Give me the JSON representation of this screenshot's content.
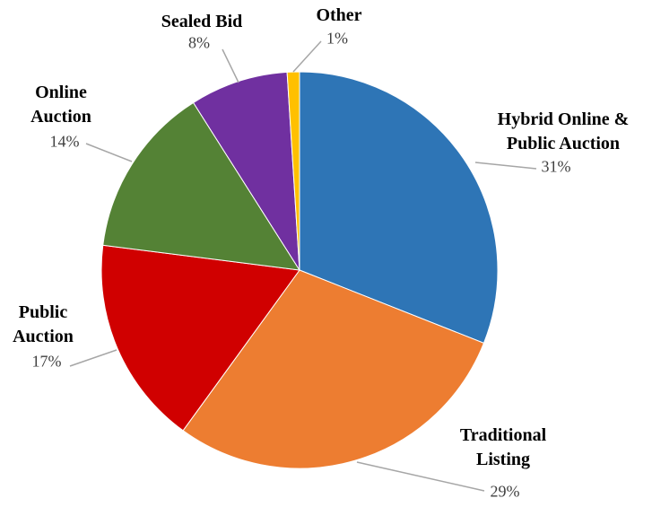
{
  "chart_data": {
    "type": "pie",
    "categories": [
      "Hybrid Online & Public Auction",
      "Traditional Listing",
      "Public Auction",
      "Online Auction",
      "Sealed Bid",
      "Other"
    ],
    "values": [
      31,
      29,
      17,
      14,
      8,
      1
    ],
    "value_labels": [
      "31%",
      "29%",
      "17%",
      "14%",
      "8%",
      "1%"
    ],
    "colors": [
      "#2e75b6",
      "#ed7d31",
      "#d00000",
      "#548235",
      "#7030a0",
      "#ffc000"
    ]
  }
}
